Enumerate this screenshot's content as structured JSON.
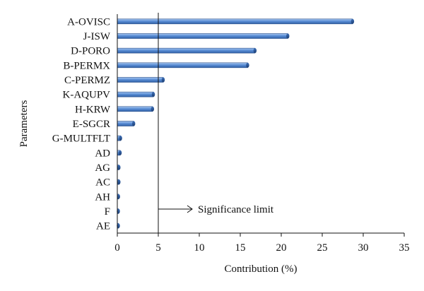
{
  "chart_data": {
    "type": "bar",
    "orientation": "horizontal",
    "categories": [
      "A-OVISC",
      "J-ISW",
      "D-PORO",
      "B-PERMX",
      "C-PERMZ",
      "K-AQUPV",
      "H-KRW",
      "E-SGCR",
      "G-MULTFLT",
      "AD",
      "AG",
      "AC",
      "AH",
      "F",
      "AE"
    ],
    "values": [
      28.7,
      20.8,
      16.8,
      15.9,
      5.6,
      4.4,
      4.3,
      2.0,
      0.4,
      0.35,
      0.2,
      0.2,
      0.15,
      0.1,
      0.1
    ],
    "xlabel": "Contribution (%)",
    "ylabel": "Parameters",
    "xlim": [
      0,
      35
    ],
    "xticks": [
      "0",
      "5",
      "10",
      "15",
      "20",
      "25",
      "30",
      "35"
    ],
    "grid": false,
    "bar_color": "#5b8fd6",
    "annotation": {
      "text": "Significance limit",
      "x_value": 5
    }
  }
}
